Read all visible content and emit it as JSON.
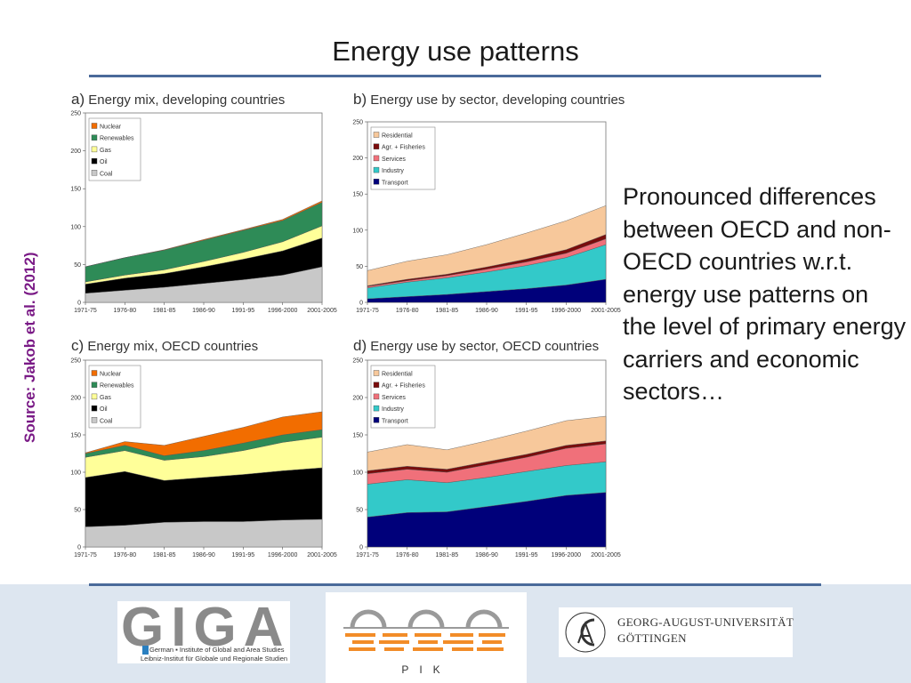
{
  "title": "Energy use patterns",
  "source": "Source: Jakob et al. (2012)",
  "body_text": "Pronounced differences between OECD and non-OECD countries w.r.t. energy use patterns on the level of primary energy carriers and economic sectors…",
  "logos": {
    "giga_letters": "GIGA",
    "giga_line1": "German ▪ Institute of Global and Area Studies",
    "giga_line2": "Leibniz-Institut für Globale und Regionale Studien",
    "pik": "PIK",
    "ug_line1": "GEORG-AUGUST-UNIVERSITÄT",
    "ug_line2": "GÖTTINGEN"
  },
  "colors": {
    "Nuclear": "#f26d00",
    "Renewables": "#2e8b57",
    "Gas": "#ffff99",
    "Oil": "#000000",
    "Coal": "#c8c8c8",
    "Residential": "#f7c89b",
    "Agr. + Fisheries": "#7a0c0c",
    "Services": "#f0707a",
    "Industry": "#33c9c9",
    "Transport": "#00007a"
  },
  "chart_data": [
    {
      "id": "a",
      "type": "area",
      "letter": "a)",
      "title": "Energy mix, developing countries",
      "categories": [
        "1971-75",
        "1976-80",
        "1981-85",
        "1986-90",
        "1991-95",
        "1996-2000",
        "2001-2005"
      ],
      "ylim": [
        0,
        250
      ],
      "yticks": [
        0,
        50,
        100,
        150,
        200,
        250
      ],
      "legend": [
        "Nuclear",
        "Renewables",
        "Gas",
        "Oil",
        "Coal"
      ],
      "series": [
        {
          "name": "Coal",
          "values": [
            12,
            16,
            20,
            25,
            30,
            36,
            47
          ]
        },
        {
          "name": "Oil",
          "values": [
            12,
            16,
            18,
            22,
            27,
            32,
            38
          ]
        },
        {
          "name": "Gas",
          "values": [
            3,
            4,
            5,
            7,
            9,
            12,
            16
          ]
        },
        {
          "name": "Renewables",
          "values": [
            20,
            23,
            26,
            28,
            29,
            28,
            31
          ]
        },
        {
          "name": "Nuclear",
          "values": [
            0,
            0,
            0.5,
            1,
            1,
            1.5,
            2
          ]
        }
      ]
    },
    {
      "id": "b",
      "type": "area",
      "letter": "b)",
      "title": "Energy use by sector, developing countries",
      "categories": [
        "1971-75",
        "1976-80",
        "1981-85",
        "1986-90",
        "1991-95",
        "1996-2000",
        "2001-2005"
      ],
      "ylim": [
        0,
        250
      ],
      "yticks": [
        0,
        50,
        100,
        150,
        200,
        250
      ],
      "legend": [
        "Residential",
        "Agr. + Fisheries",
        "Services",
        "Industry",
        "Transport"
      ],
      "series": [
        {
          "name": "Transport",
          "values": [
            5,
            8,
            11,
            15,
            19,
            24,
            32
          ]
        },
        {
          "name": "Industry",
          "values": [
            15,
            20,
            23,
            27,
            32,
            38,
            48
          ]
        },
        {
          "name": "Services",
          "values": [
            2,
            2,
            3,
            4,
            5,
            6,
            8
          ]
        },
        {
          "name": "Agr. + Fisheries",
          "values": [
            1,
            2,
            2,
            3,
            4,
            5,
            6
          ]
        },
        {
          "name": "Residential",
          "values": [
            21,
            25,
            27,
            31,
            36,
            40,
            40
          ]
        }
      ]
    },
    {
      "id": "c",
      "type": "area",
      "letter": "c)",
      "title": "Energy mix, OECD countries",
      "categories": [
        "1971-75",
        "1976-80",
        "1981-85",
        "1986-90",
        "1991-95",
        "1996-2000",
        "2001-2005"
      ],
      "ylim": [
        0,
        250
      ],
      "yticks": [
        0,
        50,
        100,
        150,
        200,
        250
      ],
      "legend": [
        "Nuclear",
        "Renewables",
        "Gas",
        "Oil",
        "Coal"
      ],
      "series": [
        {
          "name": "Coal",
          "values": [
            27,
            29,
            33,
            34,
            34,
            36,
            37
          ]
        },
        {
          "name": "Oil",
          "values": [
            66,
            72,
            56,
            59,
            63,
            66,
            69
          ]
        },
        {
          "name": "Gas",
          "values": [
            27,
            28,
            27,
            28,
            32,
            38,
            41
          ]
        },
        {
          "name": "Renewables",
          "values": [
            5,
            7,
            6,
            8,
            10,
            10,
            10
          ]
        },
        {
          "name": "Nuclear",
          "values": [
            1,
            5,
            14,
            19,
            21,
            24,
            24
          ]
        }
      ]
    },
    {
      "id": "d",
      "type": "area",
      "letter": "d)",
      "title": "Energy use by sector, OECD countries",
      "categories": [
        "1971-75",
        "1976-80",
        "1981-85",
        "1986-90",
        "1991-95",
        "1996-2000",
        "2001-2005"
      ],
      "ylim": [
        0,
        250
      ],
      "yticks": [
        0,
        50,
        100,
        150,
        200,
        250
      ],
      "legend": [
        "Residential",
        "Agr. + Fisheries",
        "Services",
        "Industry",
        "Transport"
      ],
      "series": [
        {
          "name": "Transport",
          "values": [
            40,
            46,
            47,
            54,
            61,
            69,
            73
          ]
        },
        {
          "name": "Industry",
          "values": [
            44,
            44,
            39,
            39,
            40,
            40,
            41
          ]
        },
        {
          "name": "Services",
          "values": [
            14,
            14,
            14,
            17,
            19,
            23,
            24
          ]
        },
        {
          "name": "Agr. + Fisheries",
          "values": [
            4,
            4,
            4,
            4,
            4,
            4,
            4
          ]
        },
        {
          "name": "Residential",
          "values": [
            25,
            29,
            26,
            28,
            31,
            33,
            33
          ]
        }
      ]
    }
  ]
}
